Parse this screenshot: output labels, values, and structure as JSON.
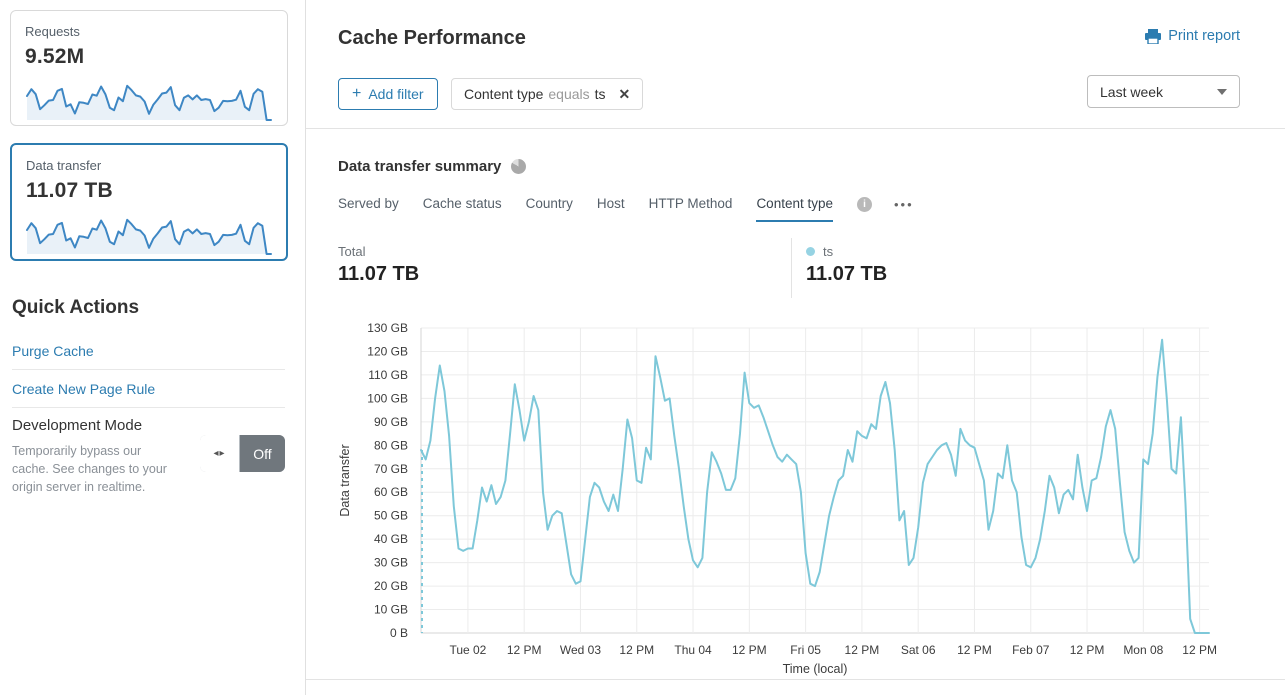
{
  "sidebar": {
    "cards": [
      {
        "label": "Requests",
        "value": "9.52M",
        "selected": false
      },
      {
        "label": "Data transfer",
        "value": "11.07 TB",
        "selected": true
      }
    ],
    "sparkline_color": "#3e87c4",
    "sparkline_fill": "#e9f1f8",
    "sparkline_values": [
      78,
      100,
      84,
      35,
      48,
      63,
      65,
      95,
      101,
      44,
      51,
      21,
      58,
      56,
      52,
      83,
      79,
      109,
      84,
      40,
      32,
      73,
      61,
      111,
      97,
      80,
      76,
      60,
      20,
      50,
      67,
      86,
      89,
      107,
      48,
      32,
      72,
      80,
      67,
      80,
      65,
      68,
      65,
      29,
      40,
      62,
      61,
      62,
      66,
      95,
      43,
      32,
      85,
      100,
      92,
      0,
      0
    ],
    "quick_actions": {
      "title": "Quick Actions",
      "links": [
        {
          "label": "Purge Cache"
        },
        {
          "label": "Create New Page Rule"
        }
      ],
      "dev_mode": {
        "title": "Development Mode",
        "description": "Temporarily bypass our cache. See changes to your origin server in realtime.",
        "toggle_state": "Off"
      }
    }
  },
  "header": {
    "title": "Cache Performance",
    "print_label": "Print report",
    "add_filter_label": "Add filter",
    "plus_glyph": "+"
  },
  "filter_chip": {
    "field": "Content type",
    "operator": "equals",
    "value": "ts",
    "close_glyph": "✕"
  },
  "time_range": {
    "selected": "Last week"
  },
  "summary": {
    "title": "Data transfer summary",
    "tabs": [
      {
        "label": "Served by",
        "active": false
      },
      {
        "label": "Cache status",
        "active": false
      },
      {
        "label": "Country",
        "active": false
      },
      {
        "label": "Host",
        "active": false
      },
      {
        "label": "HTTP Method",
        "active": false
      },
      {
        "label": "Content type",
        "active": true
      }
    ],
    "more_glyph": "•••",
    "info_glyph": "i",
    "total_label": "Total",
    "total_value": "11.07 TB",
    "legend": {
      "name": "ts",
      "value": "11.07 TB",
      "color": "#96d3e3"
    }
  },
  "chart_data": {
    "type": "line",
    "title": "Data transfer summary",
    "xlabel": "Time (local)",
    "ylabel": "Data transfer",
    "unit": "GB",
    "ylim": [
      0,
      130
    ],
    "grid": true,
    "y_ticks": [
      "0 B",
      "10 GB",
      "20 GB",
      "30 GB",
      "40 GB",
      "50 GB",
      "60 GB",
      "70 GB",
      "80 GB",
      "90 GB",
      "100 GB",
      "110 GB",
      "120 GB",
      "130 GB"
    ],
    "x_ticks": [
      {
        "hour": 10,
        "label": "Tue 02"
      },
      {
        "hour": 22,
        "label": "12 PM"
      },
      {
        "hour": 34,
        "label": "Wed 03"
      },
      {
        "hour": 46,
        "label": "12 PM"
      },
      {
        "hour": 58,
        "label": "Thu 04"
      },
      {
        "hour": 70,
        "label": "12 PM"
      },
      {
        "hour": 82,
        "label": "Fri 05"
      },
      {
        "hour": 94,
        "label": "12 PM"
      },
      {
        "hour": 106,
        "label": "Sat 06"
      },
      {
        "hour": 118,
        "label": "12 PM"
      },
      {
        "hour": 130,
        "label": "Feb 07"
      },
      {
        "hour": 142,
        "label": "12 PM"
      },
      {
        "hour": 154,
        "label": "Mon 08"
      },
      {
        "hour": 166,
        "label": "12 PM"
      }
    ],
    "start_dashed": true,
    "series": [
      {
        "name": "ts",
        "color": "#7ec8d9",
        "interval": "1 hour",
        "values": [
          78,
          74,
          82,
          100,
          114,
          103,
          84,
          54,
          36,
          35,
          36,
          36,
          48,
          62,
          56,
          63,
          55,
          58,
          65,
          85,
          106,
          95,
          82,
          90,
          101,
          95,
          60,
          44,
          50,
          52,
          51,
          38,
          25,
          21,
          22,
          40,
          58,
          64,
          62,
          56,
          52,
          59,
          52,
          70,
          91,
          83,
          65,
          64,
          79,
          74,
          118,
          109,
          99,
          100,
          84,
          70,
          54,
          40,
          31,
          28,
          32,
          60,
          77,
          73,
          68,
          61,
          61,
          66,
          85,
          111,
          98,
          96,
          97,
          92,
          86,
          80,
          75,
          73,
          76,
          74,
          72,
          60,
          34,
          21,
          20,
          26,
          38,
          50,
          58,
          65,
          67,
          78,
          73,
          86,
          84,
          83,
          89,
          87,
          101,
          107,
          98,
          78,
          48,
          52,
          29,
          32,
          45,
          64,
          72,
          75,
          78,
          80,
          81,
          76,
          67,
          87,
          82,
          80,
          79,
          72,
          65,
          44,
          52,
          68,
          66,
          80,
          65,
          60,
          41,
          29,
          28,
          32,
          40,
          52,
          67,
          62,
          51,
          59,
          61,
          57,
          76,
          62,
          52,
          65,
          66,
          75,
          88,
          95,
          87,
          64,
          43,
          35,
          30,
          32,
          74,
          72,
          85,
          109,
          125,
          100,
          70,
          68,
          92,
          55,
          6,
          0,
          0,
          0,
          0
        ]
      }
    ]
  }
}
